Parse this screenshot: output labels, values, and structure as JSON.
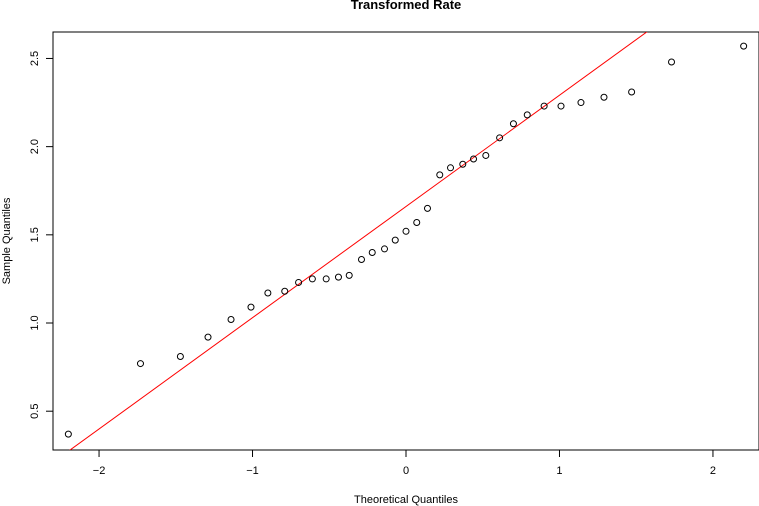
{
  "chart_data": {
    "type": "scatter",
    "title": "Transformed Rate",
    "xlabel": "Theoretical Quantiles",
    "ylabel": "Sample Quantiles",
    "xlim": [
      -2.3,
      2.3
    ],
    "ylim": [
      0.28,
      2.65
    ],
    "x_ticks": [
      -2,
      -1,
      0,
      1,
      2
    ],
    "x_tick_labels": [
      "−2",
      "−1",
      "0",
      "1",
      "2"
    ],
    "y_ticks": [
      0.5,
      1.0,
      1.5,
      2.0,
      2.5
    ],
    "y_tick_labels": [
      "0.5",
      "1.0",
      "1.5",
      "2.0",
      "2.5"
    ],
    "grid": false,
    "legend": "none",
    "colors": {
      "points": "#000000",
      "reference_line": "#ff0000"
    },
    "points": [
      {
        "x": -2.2,
        "y": 0.37
      },
      {
        "x": -1.73,
        "y": 0.77
      },
      {
        "x": -1.47,
        "y": 0.81
      },
      {
        "x": -1.29,
        "y": 0.92
      },
      {
        "x": -1.14,
        "y": 1.02
      },
      {
        "x": -1.01,
        "y": 1.09
      },
      {
        "x": -0.9,
        "y": 1.17
      },
      {
        "x": -0.79,
        "y": 1.18
      },
      {
        "x": -0.7,
        "y": 1.23
      },
      {
        "x": -0.61,
        "y": 1.25
      },
      {
        "x": -0.52,
        "y": 1.25
      },
      {
        "x": -0.44,
        "y": 1.26
      },
      {
        "x": -0.37,
        "y": 1.27
      },
      {
        "x": -0.29,
        "y": 1.36
      },
      {
        "x": -0.22,
        "y": 1.4
      },
      {
        "x": -0.14,
        "y": 1.42
      },
      {
        "x": -0.07,
        "y": 1.47
      },
      {
        "x": 0.0,
        "y": 1.52
      },
      {
        "x": 0.07,
        "y": 1.57
      },
      {
        "x": 0.14,
        "y": 1.65
      },
      {
        "x": 0.22,
        "y": 1.84
      },
      {
        "x": 0.29,
        "y": 1.88
      },
      {
        "x": 0.37,
        "y": 1.9
      },
      {
        "x": 0.44,
        "y": 1.93
      },
      {
        "x": 0.52,
        "y": 1.95
      },
      {
        "x": 0.61,
        "y": 2.05
      },
      {
        "x": 0.7,
        "y": 2.13
      },
      {
        "x": 0.79,
        "y": 2.18
      },
      {
        "x": 0.9,
        "y": 2.23
      },
      {
        "x": 1.01,
        "y": 2.23
      },
      {
        "x": 1.14,
        "y": 2.25
      },
      {
        "x": 1.29,
        "y": 2.28
      },
      {
        "x": 1.47,
        "y": 2.31
      },
      {
        "x": 1.73,
        "y": 2.48
      },
      {
        "x": 2.2,
        "y": 2.57
      }
    ],
    "reference_line": {
      "x1": -2.3,
      "y1": 0.21,
      "x2": 1.6,
      "y2": 2.67
    }
  }
}
